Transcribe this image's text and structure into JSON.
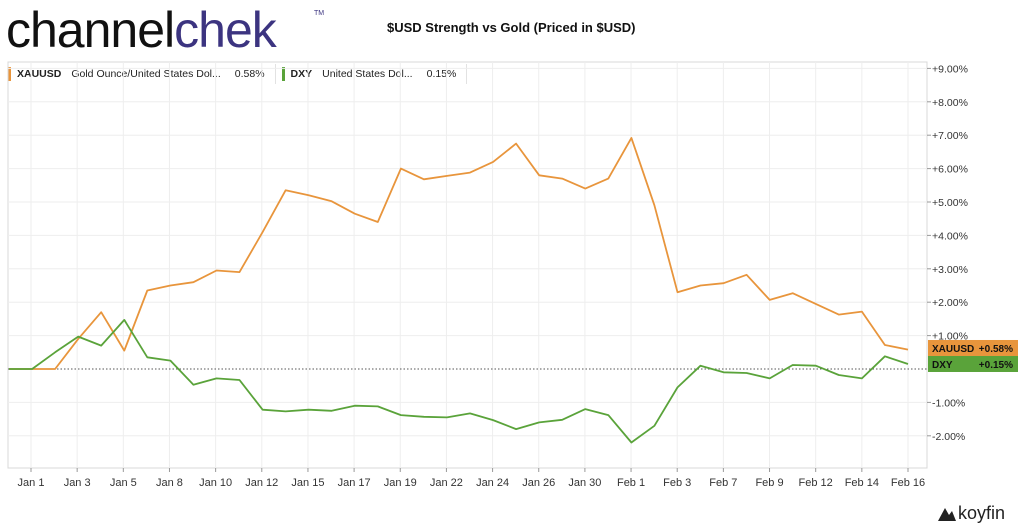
{
  "brand": {
    "part1": "channel",
    "part2": "chek",
    "tm": "TM"
  },
  "footer_logo": "koyfin",
  "chart_data": {
    "type": "line",
    "title": "$USD Strength vs Gold (Priced in $USD)",
    "x_ticks": [
      "Jan 1",
      "Jan 3",
      "Jan 5",
      "Jan 8",
      "Jan 10",
      "Jan 12",
      "Jan 15",
      "Jan 17",
      "Jan 19",
      "Jan 22",
      "Jan 24",
      "Jan 26",
      "Jan 30",
      "Feb 1",
      "Feb 3",
      "Feb 7",
      "Feb 9",
      "Feb 12",
      "Feb 14",
      "Feb 16"
    ],
    "y_ticks": [
      "+9.00%",
      "+8.00%",
      "+7.00%",
      "+6.00%",
      "+5.00%",
      "+4.00%",
      "+3.00%",
      "+2.00%",
      "+1.00%",
      "-1.00%",
      "-2.00%"
    ],
    "ylim": [
      -3,
      9
    ],
    "grid": true,
    "legend_position": "top-left",
    "series": [
      {
        "name": "XAUUSD",
        "description": "Gold Ounce/United States Dol...",
        "last_value": "0.58%",
        "tag_value": "+0.58%",
        "color": "#e8953c",
        "values": [
          0,
          0,
          0,
          0.9,
          1.7,
          0.55,
          2.35,
          2.5,
          2.6,
          2.95,
          2.9,
          4.1,
          5.35,
          5.2,
          5.02,
          4.65,
          4.4,
          6.0,
          5.68,
          5.78,
          5.88,
          6.2,
          6.75,
          5.8,
          5.7,
          5.4,
          5.7,
          6.92,
          4.9,
          2.3,
          2.5,
          2.57,
          2.82,
          2.07,
          2.27,
          1.95,
          1.63,
          1.72,
          0.72,
          0.58
        ]
      },
      {
        "name": "DXY",
        "description": "United States Dol...",
        "last_value": "0.15%",
        "tag_value": "+0.15%",
        "color": "#5aa33a",
        "values": [
          0,
          0,
          0.5,
          0.97,
          0.7,
          1.47,
          0.35,
          0.25,
          -0.47,
          -0.28,
          -0.33,
          -1.22,
          -1.27,
          -1.22,
          -1.25,
          -1.1,
          -1.12,
          -1.38,
          -1.43,
          -1.45,
          -1.33,
          -1.53,
          -1.8,
          -1.6,
          -1.52,
          -1.2,
          -1.38,
          -2.2,
          -1.7,
          -0.55,
          0.1,
          -0.1,
          -0.12,
          -0.28,
          0.12,
          0.1,
          -0.18,
          -0.28,
          0.38,
          0.15
        ]
      }
    ]
  }
}
